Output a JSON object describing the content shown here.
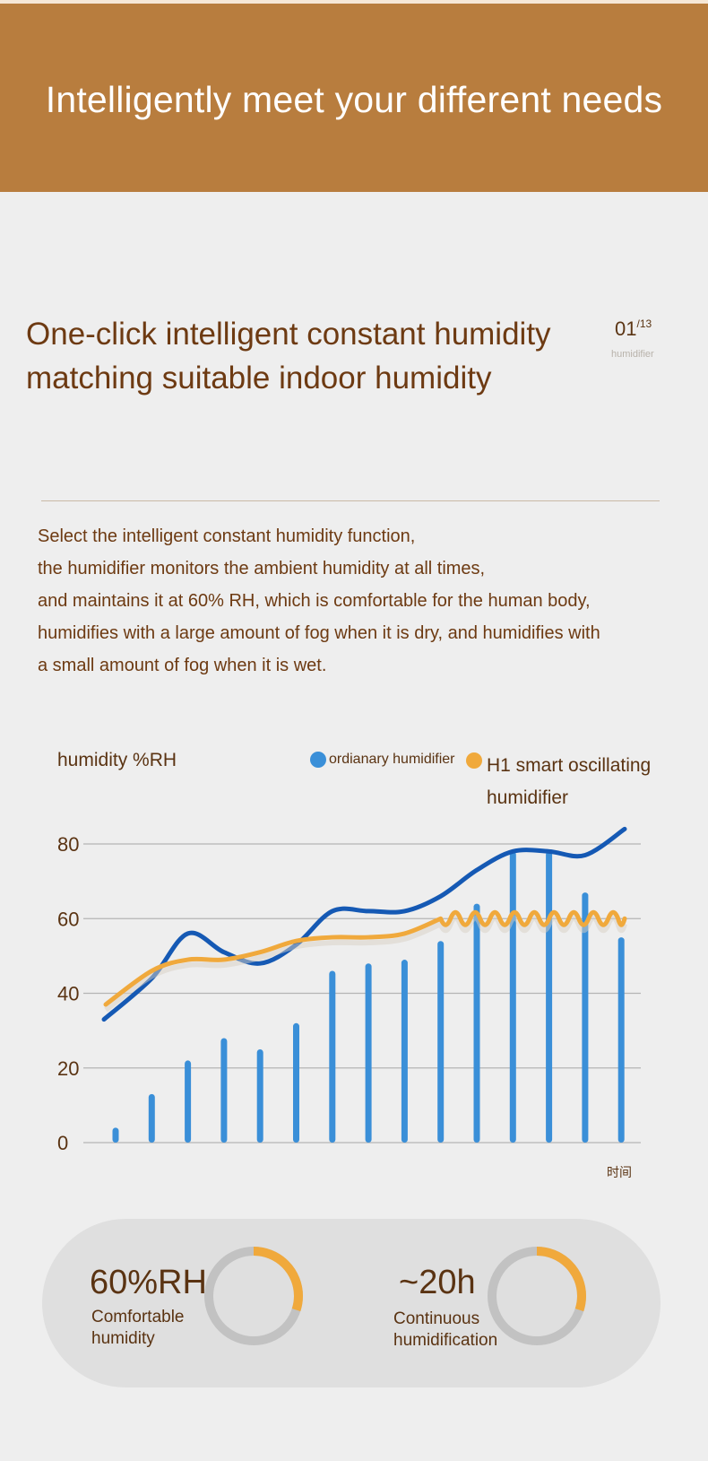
{
  "banner": {
    "title": "Intelligently meet your different needs"
  },
  "headline": {
    "line1": "One-click intelligent constant humidity",
    "line2": "matching suitable indoor humidity"
  },
  "page_indicator": {
    "current": "01",
    "total": "/13",
    "label": "humidifier"
  },
  "description": {
    "lines": [
      "Select the intelligent constant humidity function,",
      "the humidifier monitors the ambient humidity at all times,",
      "and maintains it at 60% RH, which is comfortable for the human body,",
      "humidifies with a large amount of fog when it is dry, and humidifies with",
      "a small amount of fog when it is wet."
    ]
  },
  "chart_data": {
    "type": "bar",
    "ylabel": "humidity %RH",
    "xlabel": "时间",
    "ylim": [
      0,
      80
    ],
    "yticks": [
      "80",
      "60",
      "40",
      "20",
      "0"
    ],
    "grid": true,
    "legend_placement": "top-right",
    "series": [
      {
        "name": "ordianary humidifier",
        "kind": "bar",
        "color": "#3a8fd8",
        "values": [
          4,
          13,
          22,
          28,
          25,
          32,
          46,
          48,
          49,
          54,
          64,
          78,
          78,
          67,
          55
        ]
      },
      {
        "name": "H1 smart oscillating humidifier",
        "kind": "line",
        "color": "#f0a93c",
        "values": [
          37,
          46,
          49,
          49,
          51,
          54,
          55,
          55,
          56,
          60,
          60,
          60,
          60,
          60,
          60
        ]
      }
    ],
    "ordinary_curve": {
      "color": "#1559b4",
      "values": [
        33,
        44,
        56,
        51,
        48,
        53,
        62,
        62,
        62,
        66,
        73,
        78,
        78,
        77,
        84
      ]
    }
  },
  "stats": [
    {
      "value": "60%RH",
      "label_line1": "Comfortable",
      "label_line2": "humidity",
      "ring_fraction": 0.3
    },
    {
      "value": "~20h",
      "label_line1": "Continuous",
      "label_line2": "humidification",
      "ring_fraction": 0.3
    }
  ],
  "colors": {
    "banner": "#b87d3e",
    "headline_text": "#6d3a12",
    "ring_accent": "#f0a93c",
    "ring_track": "#c2c2c2",
    "pill": "#dfdfdf"
  }
}
